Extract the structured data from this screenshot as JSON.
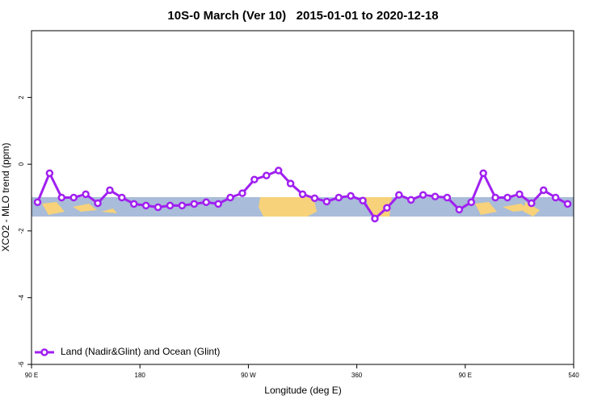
{
  "chart_data": {
    "type": "line",
    "title": "10S-0 March (Ver 10)   2015-01-01 to 2020-12-18",
    "x_label": "Longitude (deg E)",
    "y_label": "XCO2 - MLO trend (ppm)",
    "x": [
      95,
      105,
      115,
      125,
      135,
      145,
      155,
      165,
      175,
      185,
      195,
      205,
      215,
      225,
      235,
      245,
      255,
      265,
      275,
      285,
      295,
      305,
      315,
      325,
      335,
      345,
      355,
      365,
      375,
      385,
      395,
      405,
      415,
      425,
      435,
      445,
      455,
      465,
      475,
      485,
      495,
      505,
      515,
      525,
      535
    ],
    "series": [
      {
        "name": "Land (Nadir&Glint) and Ocean (Glint)",
        "color": "#a020f0",
        "values": [
          -1.14,
          -0.27,
          -1.0,
          -1.0,
          -0.9,
          -1.17,
          -0.78,
          -1.0,
          -1.19,
          -1.24,
          -1.29,
          -1.24,
          -1.24,
          -1.19,
          -1.14,
          -1.19,
          -1.0,
          -0.87,
          -0.46,
          -0.34,
          -0.19,
          -0.58,
          -0.9,
          -1.02,
          -1.12,
          -1.0,
          -0.95,
          -1.09,
          -1.63,
          -1.31,
          -0.92,
          -1.07,
          -0.92,
          -0.97,
          -1.0,
          -1.36,
          -1.14,
          -0.27,
          -1.0,
          -1.0,
          -0.9,
          -1.17,
          -0.78,
          -1.0,
          -1.19
        ]
      }
    ],
    "xlim": [
      90,
      540
    ],
    "xticks": [
      {
        "value": 90,
        "label": "90 E"
      },
      180,
      {
        "value": 270,
        "label": "90 W"
      },
      360,
      {
        "value": 450,
        "label": "90 E"
      },
      540
    ],
    "ylim": [
      -6,
      4
    ],
    "yticks": [
      2,
      0,
      -2,
      -4,
      -6
    ],
    "legend": "lower left"
  }
}
